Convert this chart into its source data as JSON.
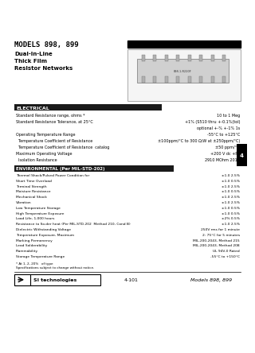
{
  "title_models": "MODELS 898, 899",
  "title_line1": "Dual-In-Line",
  "title_line2": "Thick Film",
  "title_line3": "Resistor Networks",
  "section_electrical": "ELECTRICAL",
  "section_environmental": "ENVIRONMENTAL (Per MIL-STD-202)",
  "electrical_rows": [
    [
      "Standard Resistance range, ohms *",
      "10 to 1 Meg"
    ],
    [
      "Standard Resistance Tolerance, at 25°C",
      "+1% (S510 thru +-0.1%(tol)"
    ],
    [
      "",
      "optional +-% +-1% 1s"
    ],
    [
      "Operating Temperature Range",
      "-55°C to +125°C"
    ],
    [
      "  Temperature Coefficient of Resistance",
      "±100ppm/°C to 300 Ω/W at ±250ppm/°C)"
    ],
    [
      "  Temperature Coefficient of Resistance  catalog",
      "±50 ppm/°C"
    ],
    [
      "Maximum Operating Voltage",
      "+200 V dc +PP"
    ],
    [
      "  Isolation Resistance",
      "2910 MOhm 2012"
    ]
  ],
  "environmental_rows": [
    [
      "Thermal Shock/Pulsed Power Condition for",
      "±1.0 2.5%"
    ],
    [
      "Short Time Overload",
      "±1.0 0.5%"
    ],
    [
      "Terminal Strength",
      "±1.0 2.5%"
    ],
    [
      "Moisture Resistance",
      "±1.0 0.5%"
    ],
    [
      "Mechanical Shock",
      "±1.0 2.5%"
    ],
    [
      "Vibration",
      "±1.0 2.5%"
    ],
    [
      "Low Temperature Storage",
      "±1.0 0.5%"
    ],
    [
      "High Temperature Exposure",
      "±1.0 0.5%"
    ],
    [
      "Load Life, 1,000 hours",
      "±2% 0.5%"
    ],
    [
      "Resistance to So.der heat (Per MIL-STD-202  Method 210, Cond B)",
      "±1.0 2.5%"
    ],
    [
      "Dielectric Withstanding Voltage",
      "250V rms for 1 minute"
    ],
    [
      "Temperature Exposure, Maximum",
      "2: 75°C for 5 minutes"
    ],
    [
      "Marking Permanency",
      "MIL-200-2043, Method 215"
    ],
    [
      "Lead Solderability",
      "MIL-200-2043, Method 208"
    ],
    [
      "Flammability",
      "UL 94V-0 Rated"
    ],
    [
      "Storage Temperature Range",
      "-55°C to +150°C"
    ]
  ],
  "footnote1": "* At 1, 2, 20%   of type",
  "footnote2": "Specifications subject to change without notice.",
  "footer_page": "4-101",
  "footer_models": "Models 898, 899",
  "page_tab": "4",
  "bg_color": "#ffffff"
}
